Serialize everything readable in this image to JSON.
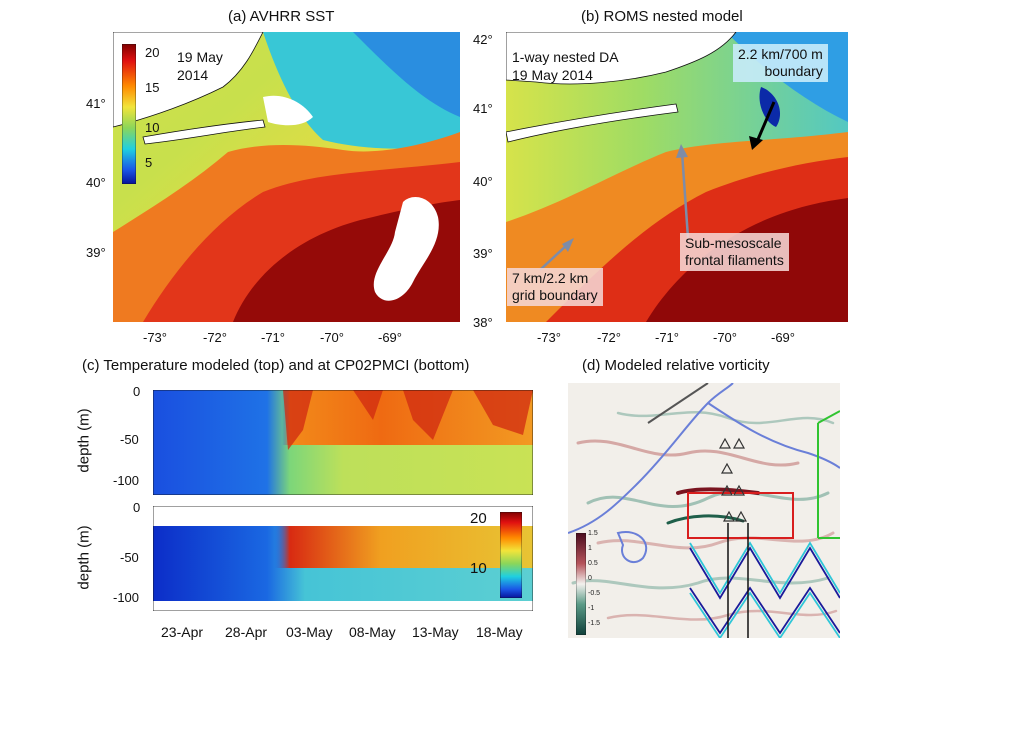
{
  "panels": {
    "a": {
      "title": "(a) AVHRR SST",
      "date_line1": "19 May",
      "date_line2": "2014",
      "colorbar_ticks": [
        "20",
        "15",
        "10",
        "5"
      ],
      "x_ticks": [
        "-73°",
        "-72°",
        "-71°",
        "-70°",
        "-69°"
      ],
      "y_ticks": [
        "41°",
        "40°",
        "39°"
      ]
    },
    "b": {
      "title": "(b) ROMS nested  model",
      "label_line1": "1-way nested DA",
      "label_line2": "19 May 2014",
      "boundary_ann_line1": "2.2 km/700 m",
      "boundary_ann_line2": "boundary",
      "filament_ann_line1": "Sub-mesoscale",
      "filament_ann_line2": "frontal filaments",
      "grid_ann_line1": "7 km/2.2 km",
      "grid_ann_line2": "grid boundary",
      "x_ticks": [
        "-73°",
        "-72°",
        "-71°",
        "-70°",
        "-69°"
      ],
      "y_ticks": [
        "42°",
        "41°",
        "40°",
        "39°",
        "38°"
      ]
    },
    "c": {
      "title": "(c) Temperature modeled (top) and at CP02PMCI (bottom)",
      "ylabel": "depth (m)",
      "top_y_ticks": [
        "0",
        "-50",
        "-100"
      ],
      "bottom_y_ticks": [
        "0",
        "-50",
        "-100"
      ],
      "x_ticks": [
        "23-Apr",
        "28-Apr",
        "03-May",
        "08-May",
        "13-May",
        "18-May"
      ],
      "colorbar_ticks": [
        "20",
        "10"
      ]
    },
    "d": {
      "title": "(d) Modeled relative vorticity",
      "colorbar_ticks": [
        "1.5",
        "1",
        "0.5",
        "0",
        "-0.5",
        "-1",
        "-1.5"
      ]
    }
  },
  "colors": {
    "warm": "#8b0000",
    "red": "#e8321a",
    "orange": "#f08a22",
    "yellow": "#e9e040",
    "green": "#8fd35f",
    "cyan": "#35c3d8",
    "blue": "#1f4fd0",
    "navy": "#0a1c8c",
    "vort_pos": "#8a1f2a",
    "vort_neg": "#1f5f4a"
  },
  "chart_data": [
    {
      "type": "heatmap",
      "panel": "a",
      "title": "(a) AVHRR SST",
      "annotation": "19 May 2014",
      "x_ticks": [
        -73,
        -72,
        -71,
        -70,
        -69
      ],
      "y_ticks": [
        41,
        40,
        39
      ],
      "colorbar_range": [
        5,
        20
      ],
      "colorbar_ticks": [
        20,
        15,
        10,
        5
      ]
    },
    {
      "type": "heatmap",
      "panel": "b",
      "title": "(b) ROMS nested  model",
      "annotations": [
        "1-way nested DA 19 May 2014",
        "2.2 km/700 m boundary",
        "Sub-mesoscale frontal filaments",
        "7 km/2.2 km grid boundary"
      ],
      "x_ticks": [
        -73,
        -72,
        -71,
        -70,
        -69
      ],
      "y_ticks": [
        42,
        41,
        40,
        39,
        38
      ]
    },
    {
      "type": "heatmap",
      "panel": "c",
      "title": "(c) Temperature modeled (top) and at CP02PMCI (bottom)",
      "ylabel": "depth (m)",
      "y_ticks": [
        0,
        -50,
        -100
      ],
      "x_ticks": [
        "23-Apr",
        "28-Apr",
        "03-May",
        "08-May",
        "13-May",
        "18-May"
      ],
      "colorbar_ticks": [
        20,
        10
      ]
    },
    {
      "type": "heatmap",
      "panel": "d",
      "title": "(d) Modeled relative vorticity",
      "colorbar_range": [
        -1.5,
        1.5
      ],
      "colorbar_ticks": [
        1.5,
        1,
        0.5,
        0,
        -0.5,
        -1,
        -1.5
      ]
    }
  ]
}
